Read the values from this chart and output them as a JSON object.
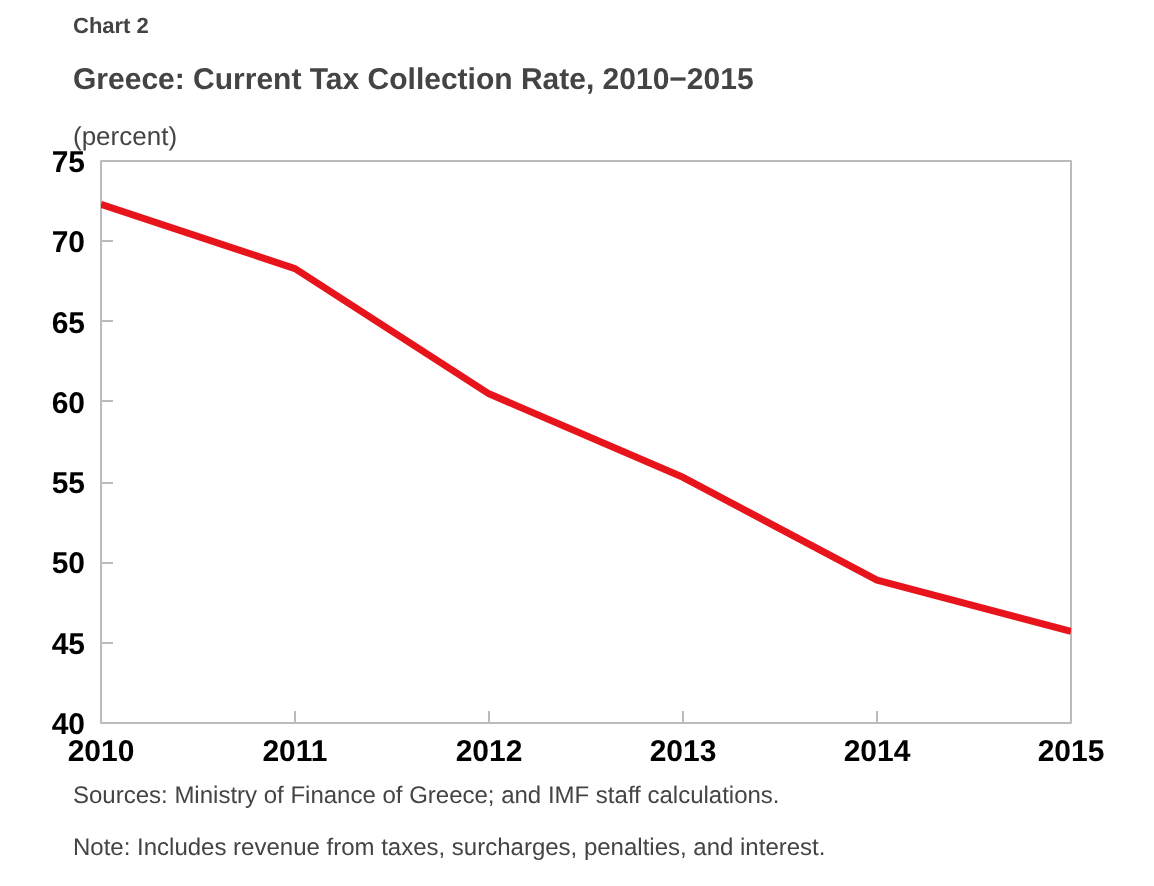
{
  "chart_data": {
    "type": "line",
    "subtitle": "Chart 2",
    "title": "Greece: Current Tax Collection Rate, 2010−2015",
    "ylabel": "(percent)",
    "x": [
      2010,
      2011,
      2012,
      2013,
      2014,
      2015
    ],
    "series": [
      {
        "color": "#e8141b",
        "values": [
          72.3,
          68.3,
          60.5,
          55.3,
          48.9,
          45.7
        ]
      }
    ],
    "xlim": [
      2010,
      2015
    ],
    "xticks": [
      2010,
      2011,
      2012,
      2013,
      2014,
      2015
    ],
    "ylim": [
      40,
      75
    ],
    "yticks": [
      40,
      45,
      50,
      55,
      60,
      65,
      70,
      75
    ],
    "grid": false,
    "marker": "none",
    "line_style": "solid",
    "annotations": [
      "Sources: Ministry of Finance of Greece; and IMF staff calculations.",
      "Note: Includes revenue from taxes, surcharges, penalties, and interest."
    ]
  }
}
